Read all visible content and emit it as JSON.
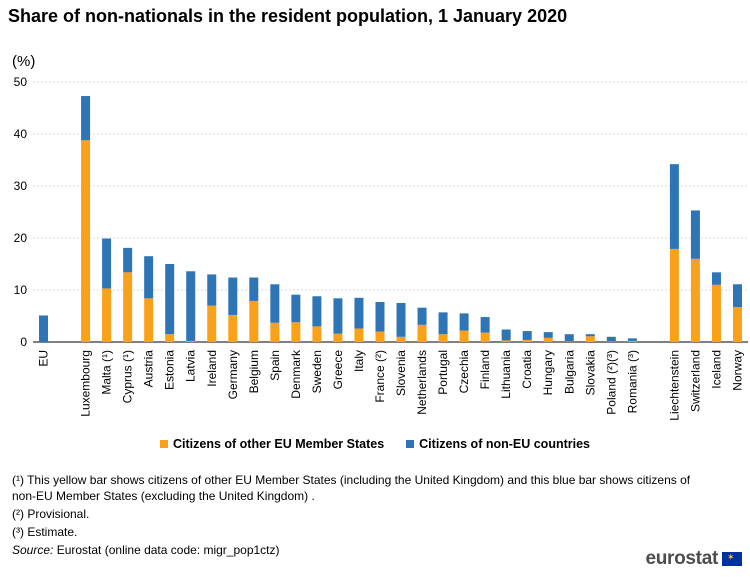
{
  "title": "Share of non-nationals in the resident population, 1 January 2020",
  "unit_label": "(%)",
  "chart_data": {
    "type": "bar",
    "stacked": true,
    "categories": [
      "EU",
      "Luxembourg",
      "Malta (¹)",
      "Cyprus (¹)",
      "Austria",
      "Estonia",
      "Latvia",
      "Ireland",
      "Germany",
      "Belgium",
      "Spain",
      "Denmark",
      "Sweden",
      "Greece",
      "Italy",
      "France (²)",
      "Slovenia",
      "Netherlands",
      "Portugal",
      "Czechia",
      "Finland",
      "Lithuania",
      "Croatia",
      "Hungary",
      "Bulgaria",
      "Slovakia",
      "Poland (²)(³)",
      "Romania (³)",
      "Liechtenstein",
      "Switzerland",
      "Iceland",
      "Norway"
    ],
    "series": [
      {
        "name": "Citizens of other EU Member States",
        "color": "#f9a11b",
        "values": [
          0,
          38.8,
          10.3,
          13.4,
          8.4,
          1.5,
          0.2,
          7.0,
          5.2,
          7.9,
          3.7,
          3.8,
          3.0,
          1.6,
          2.6,
          2.0,
          1.0,
          3.3,
          1.5,
          2.2,
          1.8,
          0.3,
          0.4,
          0.8,
          0.1,
          1.1,
          0.1,
          0.2,
          17.9,
          16.0,
          11.0,
          6.7
        ]
      },
      {
        "name": "Citizens of non-EU countries",
        "color": "#2e75b6",
        "values": [
          5.1,
          8.5,
          9.6,
          4.7,
          8.1,
          13.5,
          13.4,
          6.0,
          7.2,
          4.5,
          7.4,
          5.3,
          5.8,
          6.8,
          5.9,
          5.7,
          6.5,
          3.3,
          4.2,
          3.3,
          3.0,
          2.1,
          1.7,
          1.1,
          1.4,
          0.4,
          0.9,
          0.5,
          16.3,
          9.3,
          2.4,
          4.4
        ]
      }
    ],
    "ylim": [
      0,
      50
    ],
    "yticks": [
      0,
      10,
      20,
      30,
      40,
      50
    ],
    "grid": true,
    "legend_position": "bottom",
    "xlabel": "",
    "ylabel": "(%)"
  },
  "notes": [
    "(¹) This yellow bar shows citizens of other EU Member States (including the United Kingdom) and this blue bar shows citizens of non-EU Member States (excluding the United Kingdom) .",
    "(²) Provisional.",
    "(³) Estimate."
  ],
  "source": {
    "label": "Source:",
    "text": "Eurostat (online data code: migr_pop1ctz)"
  },
  "logo": {
    "text": "eurostat"
  }
}
